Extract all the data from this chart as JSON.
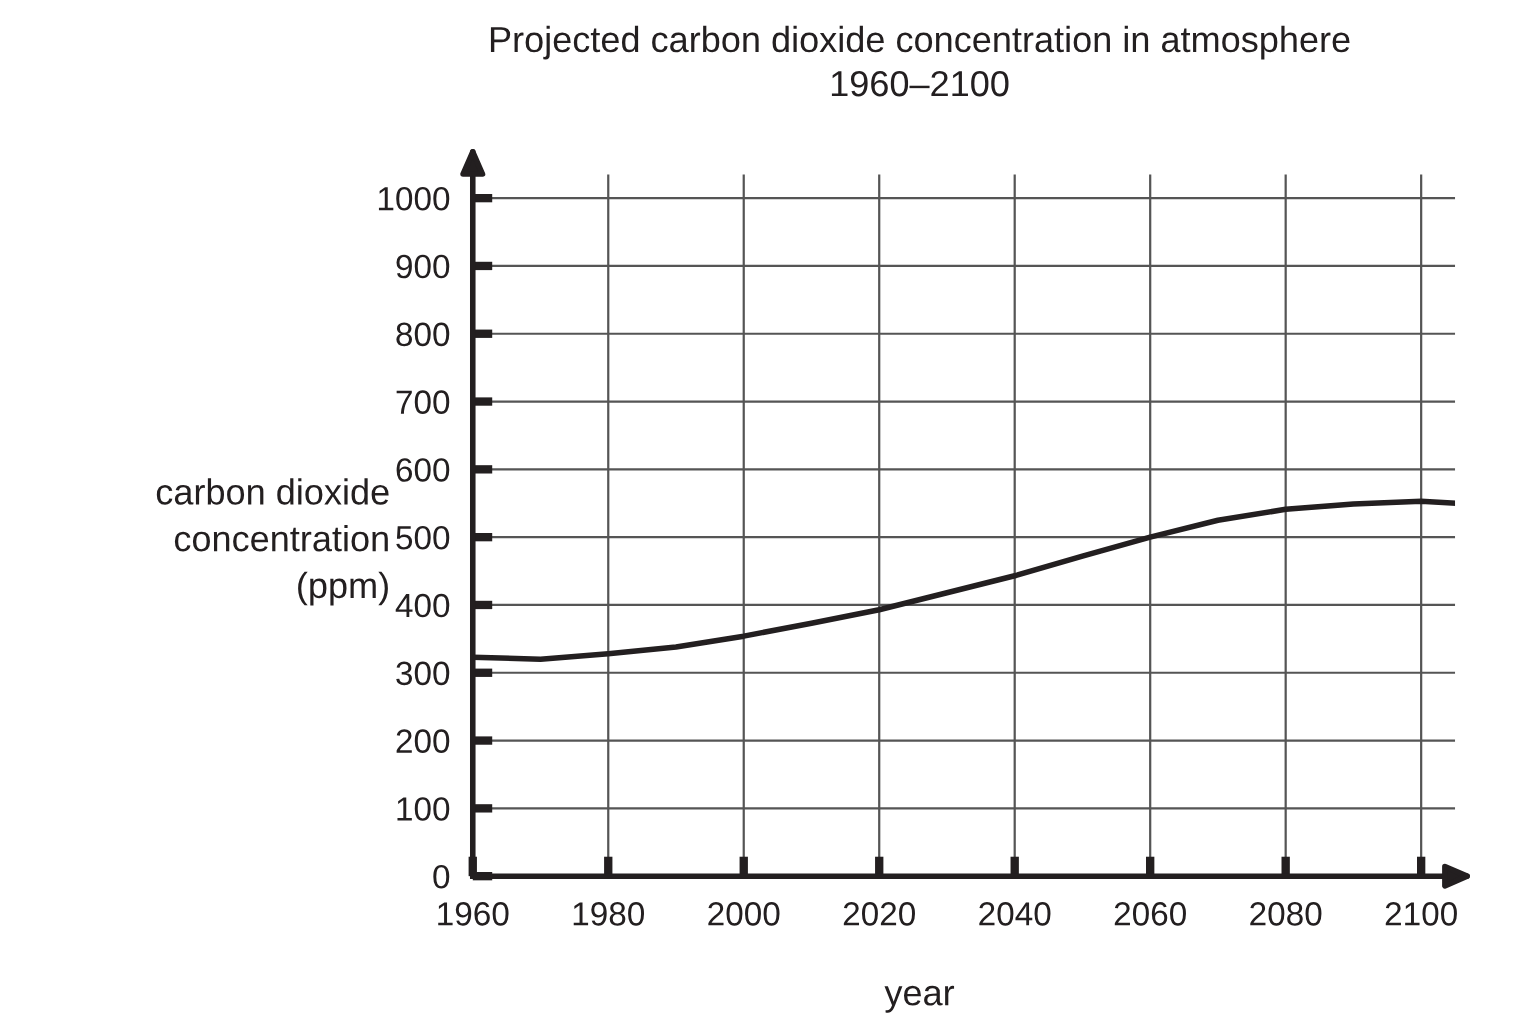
{
  "chart_data": {
    "type": "line",
    "title": "Projected carbon dioxide concentration in atmosphere\n1960–2100",
    "xlabel": "year",
    "ylabel": "carbon dioxide\nconcentration\n(ppm)",
    "x": [
      1960,
      1970,
      1980,
      1990,
      2000,
      2010,
      2020,
      2030,
      2040,
      2050,
      2060,
      2070,
      2080,
      2090,
      2100,
      2105
    ],
    "series": [
      {
        "color": "#231f20",
        "values": [
          323,
          320,
          328,
          338,
          354,
          373,
          393,
          418,
          443,
          472,
          500,
          525,
          541,
          549,
          553,
          550
        ]
      }
    ],
    "xlim": [
      1960,
      2105
    ],
    "xticks": [
      1960,
      1980,
      2000,
      2020,
      2040,
      2060,
      2080,
      2100
    ],
    "ylim": [
      0,
      1035
    ],
    "yticks": [
      0,
      100,
      200,
      300,
      400,
      500,
      600,
      700,
      800,
      900,
      1000
    ],
    "grid": true,
    "legend": false,
    "marker": "none",
    "line_style": "solid"
  }
}
